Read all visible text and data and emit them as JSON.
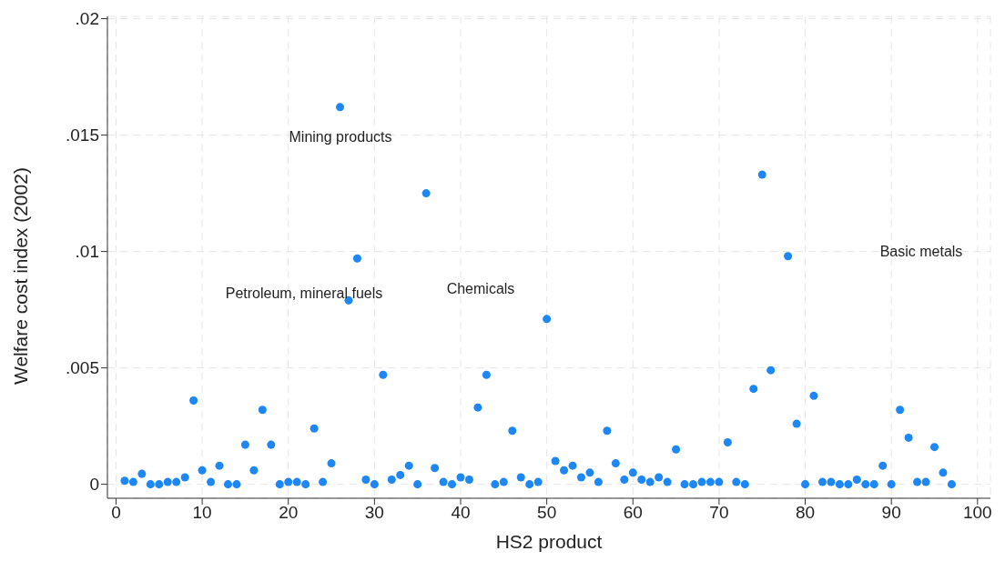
{
  "chart_data": {
    "type": "scatter",
    "xlabel": "HS2 product",
    "ylabel": "Welfare cost index (2002)",
    "x": [
      1,
      2,
      3,
      4,
      5,
      6,
      7,
      8,
      9,
      10,
      11,
      12,
      13,
      14,
      15,
      16,
      17,
      18,
      19,
      20,
      21,
      22,
      23,
      24,
      25,
      26,
      27,
      28,
      29,
      30,
      31,
      32,
      33,
      34,
      35,
      36,
      37,
      38,
      39,
      40,
      41,
      42,
      43,
      44,
      45,
      46,
      47,
      48,
      49,
      50,
      51,
      52,
      53,
      54,
      55,
      56,
      57,
      58,
      59,
      60,
      61,
      62,
      63,
      64,
      65,
      66,
      67,
      68,
      69,
      70,
      71,
      72,
      73,
      74,
      75,
      76,
      78,
      79,
      80,
      81,
      82,
      83,
      84,
      85,
      86,
      87,
      88,
      89,
      90,
      91,
      92,
      93,
      94,
      95,
      96,
      97
    ],
    "series": [
      {
        "color": "#1e87f6",
        "values": [
          0.00015,
          0.0001,
          0.00045,
          0,
          0,
          0.0001,
          0.0001,
          0.0003,
          0.0036,
          0.0006,
          0.0001,
          0.0008,
          0,
          0,
          0.0017,
          0.0006,
          0.0032,
          0.0017,
          0,
          0.0001,
          0.0001,
          0,
          0.0024,
          0.0001,
          0.0009,
          0.0162,
          0.0079,
          0.0097,
          0.0002,
          0,
          0.0047,
          0.0002,
          0.0004,
          0.0008,
          0,
          0.0125,
          0.0007,
          0.0001,
          0,
          0.0003,
          0.0002,
          0.0033,
          0.0047,
          0,
          0.0001,
          0.0023,
          0.0003,
          0,
          0.0001,
          0.0071,
          0.001,
          0.0006,
          0.0008,
          0.0003,
          0.0005,
          0.0001,
          0.0023,
          0.0009,
          0.0002,
          0.0005,
          0.0002,
          0.0001,
          0.0003,
          0.0001,
          0.0015,
          0,
          0,
          0.0001,
          0.0001,
          0.0001,
          0.0018,
          0.0001,
          0,
          0.0041,
          0.0133,
          0.0049,
          0.0098,
          0.0026,
          0,
          0.0038,
          0.0001,
          0.0001,
          0,
          0,
          0.0002,
          0,
          0,
          0.0008,
          0,
          0.0032,
          0.002,
          0.0001,
          0.0001,
          0.0016,
          0.0005,
          0
        ]
      }
    ],
    "xlim": [
      -1,
      101.5
    ],
    "xticks": [
      0,
      10,
      20,
      30,
      40,
      50,
      60,
      70,
      80,
      90,
      100
    ],
    "ylim": [
      -0.0006,
      0.0201
    ],
    "yticks": [
      {
        "value": 0,
        "label": "0"
      },
      {
        "value": 0.005,
        "label": ".005"
      },
      {
        "value": 0.01,
        "label": ".01"
      },
      {
        "value": 0.015,
        "label": ".015"
      },
      {
        "value": 0.02,
        "label": ".02"
      }
    ],
    "grid": true,
    "marker": "circle",
    "annotations": [
      "Mining products",
      "Petroleum, mineral fuels",
      "Chemicals",
      "Basic metals"
    ]
  }
}
